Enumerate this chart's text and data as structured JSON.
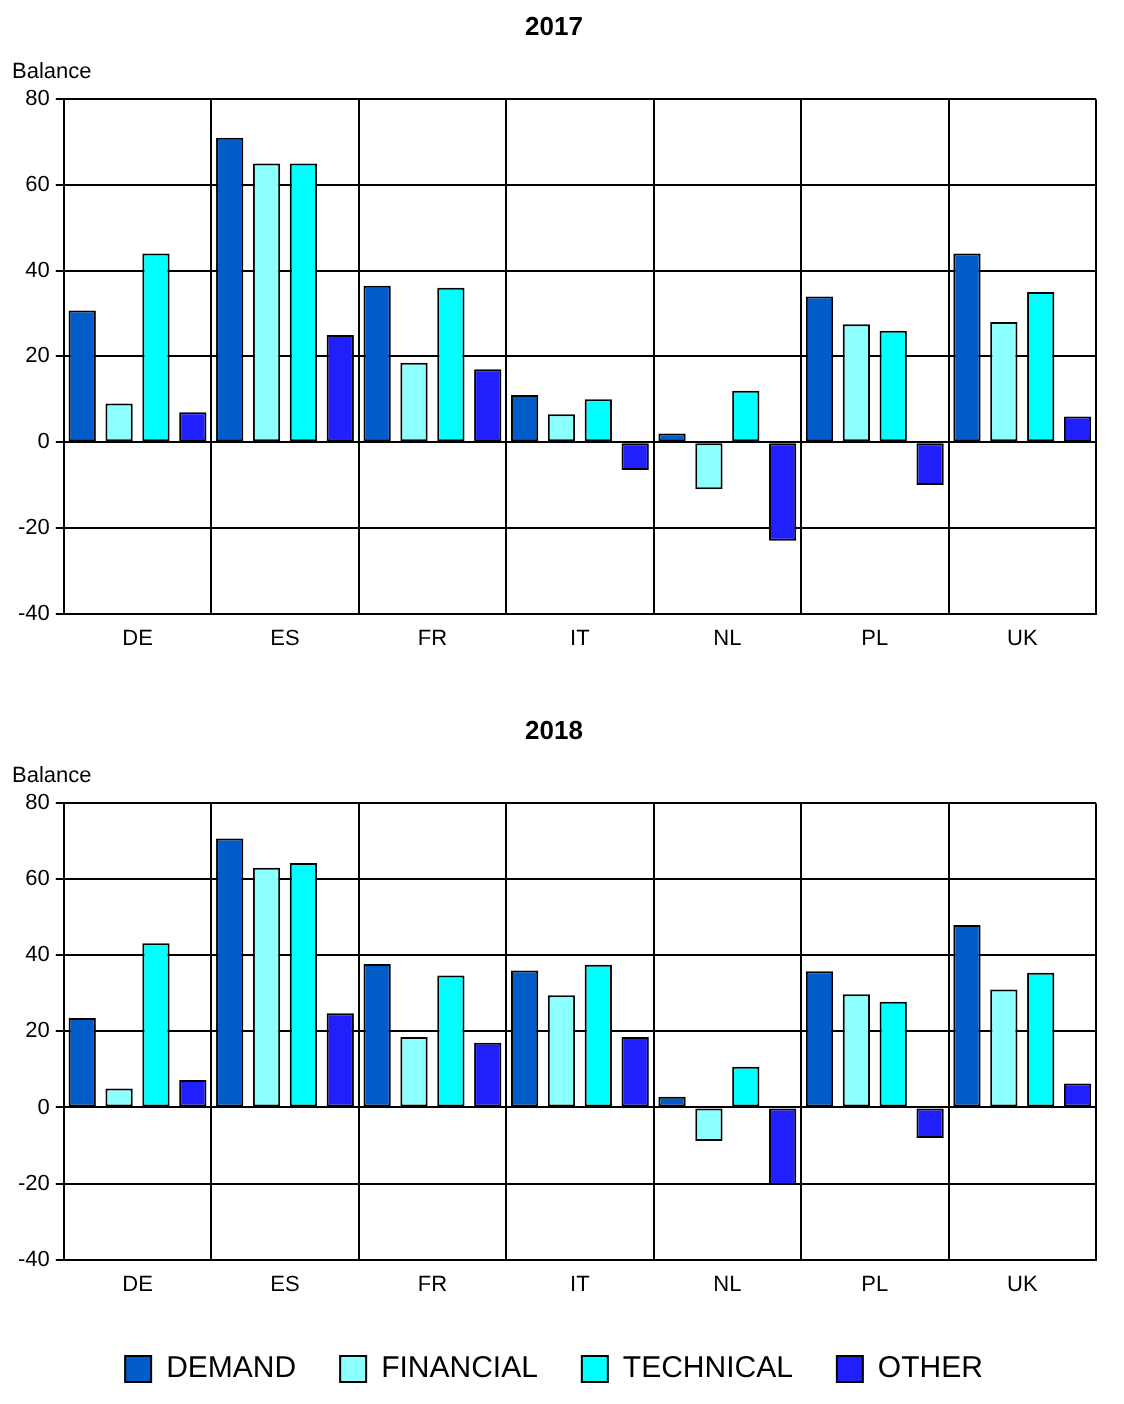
{
  "chart_data": [
    {
      "type": "bar",
      "title": "2017",
      "ylabel": "Balance",
      "categories": [
        "DE",
        "ES",
        "FR",
        "IT",
        "NL",
        "PL",
        "UK"
      ],
      "series": [
        {
          "color": "#005cc8",
          "values": [
            30.7,
            71,
            36.5,
            11,
            2,
            34,
            44
          ]
        },
        {
          "color": "#8cffff",
          "values": [
            9,
            65,
            18.5,
            6.5,
            -11,
            27.5,
            28
          ]
        },
        {
          "color": "#00ffff",
          "values": [
            44,
            65,
            36,
            10,
            12,
            26,
            35
          ]
        },
        {
          "color": "#2020ff",
          "values": [
            7,
            25,
            17,
            -6.5,
            -23,
            -10,
            6
          ]
        }
      ],
      "ylim": [
        -40,
        80
      ],
      "yticks": [
        -40,
        -20,
        0,
        20,
        40,
        60,
        80
      ],
      "grid": true,
      "legend": false
    },
    {
      "type": "bar",
      "title": "2018",
      "ylabel": "Balance",
      "categories": [
        "DE",
        "ES",
        "FR",
        "IT",
        "NL",
        "PL",
        "UK"
      ],
      "series": [
        {
          "name": "DEMAND",
          "color": "#005cc8",
          "values": [
            23.5,
            70.7,
            37.7,
            36,
            2.8,
            35.8,
            48
          ]
        },
        {
          "name": "FINANCIAL",
          "color": "#8cffff",
          "values": [
            5,
            63,
            18.5,
            29.5,
            -8.8,
            29.8,
            31
          ]
        },
        {
          "name": "TECHNICAL",
          "color": "#00ffff",
          "values": [
            43.2,
            64.3,
            34.7,
            37.5,
            10.7,
            27.8,
            35.4
          ]
        },
        {
          "name": "OTHER",
          "color": "#2020ff",
          "values": [
            7.2,
            24.8,
            17,
            18.5,
            -20.4,
            -8,
            6.3
          ]
        }
      ],
      "ylim": [
        -40,
        80
      ],
      "yticks": [
        -40,
        -20,
        0,
        20,
        40,
        60,
        80
      ],
      "grid": true,
      "legend": "bottom"
    }
  ]
}
